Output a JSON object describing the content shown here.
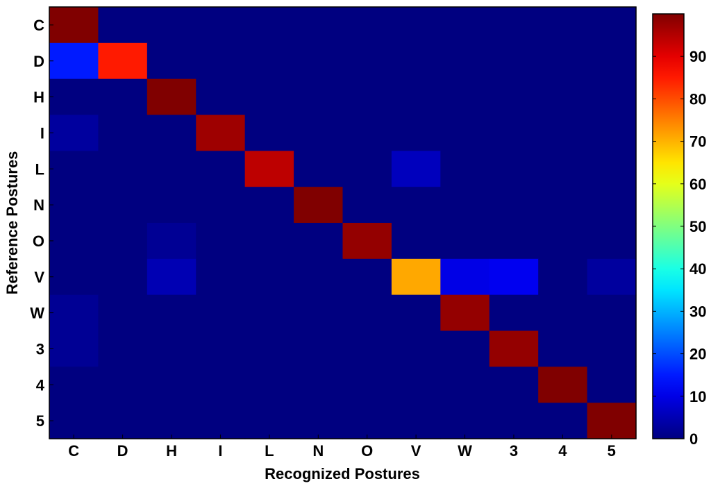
{
  "chart_data": {
    "type": "heatmap",
    "xlabel": "Recognized Postures",
    "ylabel": "Reference Postures",
    "x_categories": [
      "C",
      "D",
      "H",
      "I",
      "L",
      "N",
      "O",
      "V",
      "W",
      "3",
      "4",
      "5"
    ],
    "y_categories": [
      "C",
      "D",
      "H",
      "I",
      "L",
      "N",
      "O",
      "V",
      "W",
      "3",
      "4",
      "5"
    ],
    "values": [
      [
        100,
        0,
        0,
        0,
        0,
        0,
        0,
        0,
        0,
        0,
        0,
        0
      ],
      [
        15,
        85,
        0,
        0,
        0,
        0,
        0,
        0,
        0,
        0,
        0,
        0
      ],
      [
        0,
        0,
        100,
        0,
        0,
        0,
        0,
        0,
        0,
        0,
        0,
        0
      ],
      [
        3,
        0,
        0,
        97,
        0,
        0,
        0,
        0,
        0,
        0,
        0,
        0
      ],
      [
        0,
        0,
        0,
        0,
        94,
        0,
        0,
        6,
        0,
        0,
        0,
        0
      ],
      [
        0,
        0,
        0,
        0,
        0,
        100,
        0,
        0,
        0,
        0,
        0,
        0
      ],
      [
        0,
        0,
        2,
        0,
        0,
        0,
        98,
        0,
        0,
        0,
        0,
        0
      ],
      [
        0,
        0,
        5,
        0,
        0,
        0,
        0,
        71,
        10,
        11,
        0,
        3
      ],
      [
        2,
        0,
        0,
        0,
        0,
        0,
        0,
        0,
        98,
        0,
        0,
        0
      ],
      [
        2,
        0,
        0,
        0,
        0,
        0,
        0,
        0,
        0,
        98,
        0,
        0
      ],
      [
        0,
        0,
        0,
        0,
        0,
        0,
        0,
        0,
        0,
        0,
        100,
        0
      ],
      [
        0,
        0,
        0,
        0,
        0,
        0,
        0,
        0,
        0,
        0,
        0,
        100
      ]
    ],
    "colorbar": {
      "colormap": "jet",
      "range": [
        0,
        100
      ],
      "ticks": [
        0,
        10,
        20,
        30,
        40,
        50,
        60,
        70,
        80,
        90
      ]
    }
  }
}
